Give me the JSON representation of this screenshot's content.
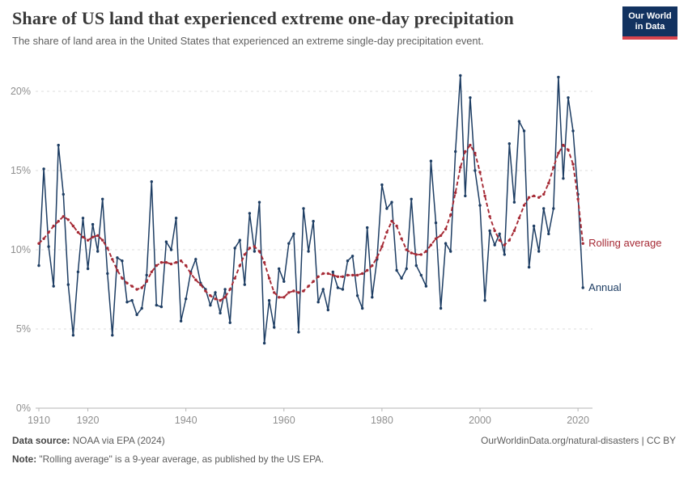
{
  "header": {
    "title": "Share of US land that experienced extreme one-day precipitation",
    "subtitle": "The share of land area in the United States that experienced an extreme single-day precipitation event.",
    "logo": {
      "line1": "Our World",
      "line2": "in Data"
    }
  },
  "footer": {
    "source_label": "Data source:",
    "source_value": " NOAA via EPA (2024)",
    "note_label": "Note:",
    "note_value": " \"Rolling average\" is a 9-year average, as published by the US EPA.",
    "link": "OurWorldinData.org/natural-disasters | CC BY"
  },
  "chart_data": {
    "type": "line",
    "title": "Share of US land that experienced extreme one-day precipitation",
    "xlabel": "",
    "ylabel": "",
    "grid": "horizontal-dashed",
    "legend": "end-labels",
    "x_ticks": [
      1910,
      1920,
      1940,
      1960,
      1980,
      2000,
      2020
    ],
    "y_ticks": [
      0,
      5,
      10,
      15,
      20
    ],
    "y_tick_suffix": "%",
    "ylim": [
      0,
      21.5
    ],
    "x": [
      1910,
      1911,
      1912,
      1913,
      1914,
      1915,
      1916,
      1917,
      1918,
      1919,
      1920,
      1921,
      1922,
      1923,
      1924,
      1925,
      1926,
      1927,
      1928,
      1929,
      1930,
      1931,
      1932,
      1933,
      1934,
      1935,
      1936,
      1937,
      1938,
      1939,
      1940,
      1941,
      1942,
      1943,
      1944,
      1945,
      1946,
      1947,
      1948,
      1949,
      1950,
      1951,
      1952,
      1953,
      1954,
      1955,
      1956,
      1957,
      1958,
      1959,
      1960,
      1961,
      1962,
      1963,
      1964,
      1965,
      1966,
      1967,
      1968,
      1969,
      1970,
      1971,
      1972,
      1973,
      1974,
      1975,
      1976,
      1977,
      1978,
      1979,
      1980,
      1981,
      1982,
      1983,
      1984,
      1985,
      1986,
      1987,
      1988,
      1989,
      1990,
      1991,
      1992,
      1993,
      1994,
      1995,
      1996,
      1997,
      1998,
      1999,
      2000,
      2001,
      2002,
      2003,
      2004,
      2005,
      2006,
      2007,
      2008,
      2009,
      2010,
      2011,
      2012,
      2013,
      2014,
      2015,
      2016,
      2017,
      2018,
      2019,
      2020,
      2021
    ],
    "series": [
      {
        "name": "Annual",
        "color": "#1d3d63",
        "style": "solid",
        "values": [
          9.0,
          15.1,
          10.2,
          7.7,
          16.6,
          13.5,
          7.8,
          4.6,
          8.6,
          12.0,
          8.8,
          11.6,
          9.9,
          13.2,
          8.5,
          4.6,
          9.5,
          9.3,
          6.7,
          6.8,
          5.9,
          6.3,
          8.4,
          14.3,
          6.5,
          6.4,
          10.5,
          10.0,
          12.0,
          5.5,
          6.9,
          8.6,
          9.4,
          7.9,
          7.5,
          6.5,
          7.3,
          6.0,
          7.5,
          5.4,
          10.1,
          10.6,
          7.8,
          12.3,
          9.9,
          13.0,
          4.1,
          6.8,
          5.1,
          8.8,
          8.0,
          10.4,
          11.0,
          4.8,
          12.6,
          9.9,
          11.8,
          6.7,
          7.5,
          6.2,
          8.6,
          7.6,
          7.5,
          9.3,
          9.6,
          7.1,
          6.3,
          11.4,
          7.0,
          9.4,
          14.1,
          12.6,
          13.0,
          8.7,
          8.2,
          8.8,
          13.2,
          9.0,
          8.4,
          7.7,
          15.6,
          11.7,
          6.3,
          10.4,
          9.9,
          16.2,
          21.0,
          13.4,
          19.6,
          15.0,
          12.8,
          6.8,
          11.2,
          10.3,
          11.0,
          9.7,
          16.7,
          13.0,
          18.1,
          17.5,
          8.9,
          11.5,
          9.9,
          12.6,
          11.0,
          12.6,
          20.9,
          14.5,
          19.6,
          17.5,
          13.5,
          7.6
        ]
      },
      {
        "name": "Rolling average",
        "color": "#a62a35",
        "style": "dashed",
        "values": [
          10.4,
          10.7,
          11.1,
          11.5,
          11.8,
          12.1,
          11.9,
          11.5,
          11.1,
          10.8,
          10.6,
          10.8,
          10.9,
          10.6,
          10.1,
          9.4,
          8.7,
          8.2,
          7.9,
          7.7,
          7.5,
          7.6,
          8.0,
          8.6,
          9.0,
          9.2,
          9.2,
          9.1,
          9.2,
          9.3,
          9.0,
          8.5,
          8.1,
          7.8,
          7.4,
          7.1,
          6.9,
          6.8,
          7.0,
          7.5,
          8.2,
          9.0,
          9.7,
          10.1,
          10.2,
          9.9,
          9.2,
          8.2,
          7.3,
          7.0,
          7.0,
          7.3,
          7.4,
          7.3,
          7.4,
          7.7,
          8.0,
          8.3,
          8.5,
          8.5,
          8.4,
          8.3,
          8.3,
          8.4,
          8.4,
          8.4,
          8.5,
          8.7,
          9.0,
          9.5,
          10.2,
          11.1,
          11.8,
          11.5,
          10.7,
          10.0,
          9.8,
          9.7,
          9.7,
          9.9,
          10.3,
          10.7,
          10.9,
          11.3,
          12.2,
          13.6,
          15.2,
          16.2,
          16.6,
          16.1,
          14.9,
          13.4,
          12.1,
          11.2,
          10.6,
          10.3,
          10.6,
          11.2,
          12.0,
          12.8,
          13.3,
          13.4,
          13.3,
          13.5,
          14.2,
          15.2,
          16.1,
          16.6,
          16.3,
          15.4,
          13.2,
          10.4
        ]
      }
    ]
  }
}
